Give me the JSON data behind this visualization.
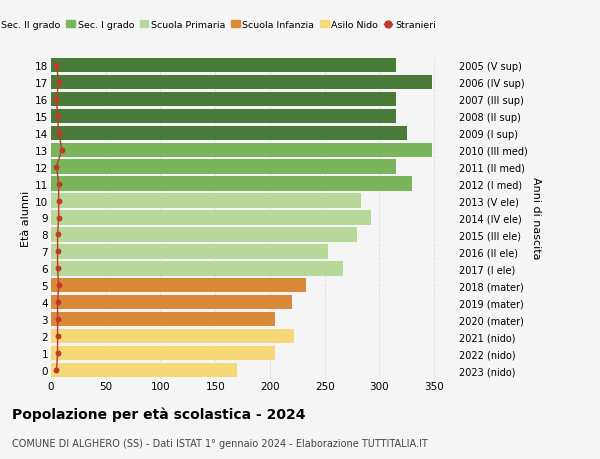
{
  "ages": [
    18,
    17,
    16,
    15,
    14,
    13,
    12,
    11,
    10,
    9,
    8,
    7,
    6,
    5,
    4,
    3,
    2,
    1,
    0
  ],
  "right_labels": [
    "2005 (V sup)",
    "2006 (IV sup)",
    "2007 (III sup)",
    "2008 (II sup)",
    "2009 (I sup)",
    "2010 (III med)",
    "2011 (II med)",
    "2012 (I med)",
    "2013 (V ele)",
    "2014 (IV ele)",
    "2015 (III ele)",
    "2016 (II ele)",
    "2017 (I ele)",
    "2018 (mater)",
    "2019 (mater)",
    "2020 (mater)",
    "2021 (nido)",
    "2022 (nido)",
    "2023 (nido)"
  ],
  "bar_values": [
    315,
    348,
    315,
    315,
    325,
    348,
    315,
    330,
    283,
    292,
    280,
    253,
    267,
    233,
    220,
    205,
    222,
    205,
    170
  ],
  "stranieri_values": [
    5,
    7,
    5,
    6,
    7,
    10,
    5,
    7,
    7,
    7,
    6,
    6,
    6,
    7,
    6,
    6,
    6,
    6,
    5
  ],
  "bar_colors": [
    "#4a7a38",
    "#4a7a38",
    "#4a7a38",
    "#4a7a38",
    "#4a7a38",
    "#7ab55c",
    "#7ab55c",
    "#7ab55c",
    "#b8d89a",
    "#b8d89a",
    "#b8d89a",
    "#b8d89a",
    "#b8d89a",
    "#d9893a",
    "#d9893a",
    "#d9893a",
    "#f5d878",
    "#f5d878",
    "#f5d878"
  ],
  "legend_labels": [
    "Sec. II grado",
    "Sec. I grado",
    "Scuola Primaria",
    "Scuola Infanzia",
    "Asilo Nido",
    "Stranieri"
  ],
  "legend_colors": [
    "#4a7a38",
    "#7ab55c",
    "#b8d89a",
    "#d9893a",
    "#f5d878",
    "#c0392b"
  ],
  "title": "Popolazione per età scolastica - 2024",
  "subtitle": "COMUNE DI ALGHERO (SS) - Dati ISTAT 1° gennaio 2024 - Elaborazione TUTTITALIA.IT",
  "ylabel": "Età alunni",
  "right_ylabel": "Anni di nascita",
  "xlabel_vals": [
    0,
    50,
    100,
    150,
    200,
    250,
    300,
    350
  ],
  "xlim": [
    0,
    370
  ],
  "bg_color": "#f5f5f5",
  "plot_bg_color": "#f5f5f5",
  "stranieri_color": "#c0392b",
  "bar_height": 0.85,
  "grid_color": "#dddddd"
}
